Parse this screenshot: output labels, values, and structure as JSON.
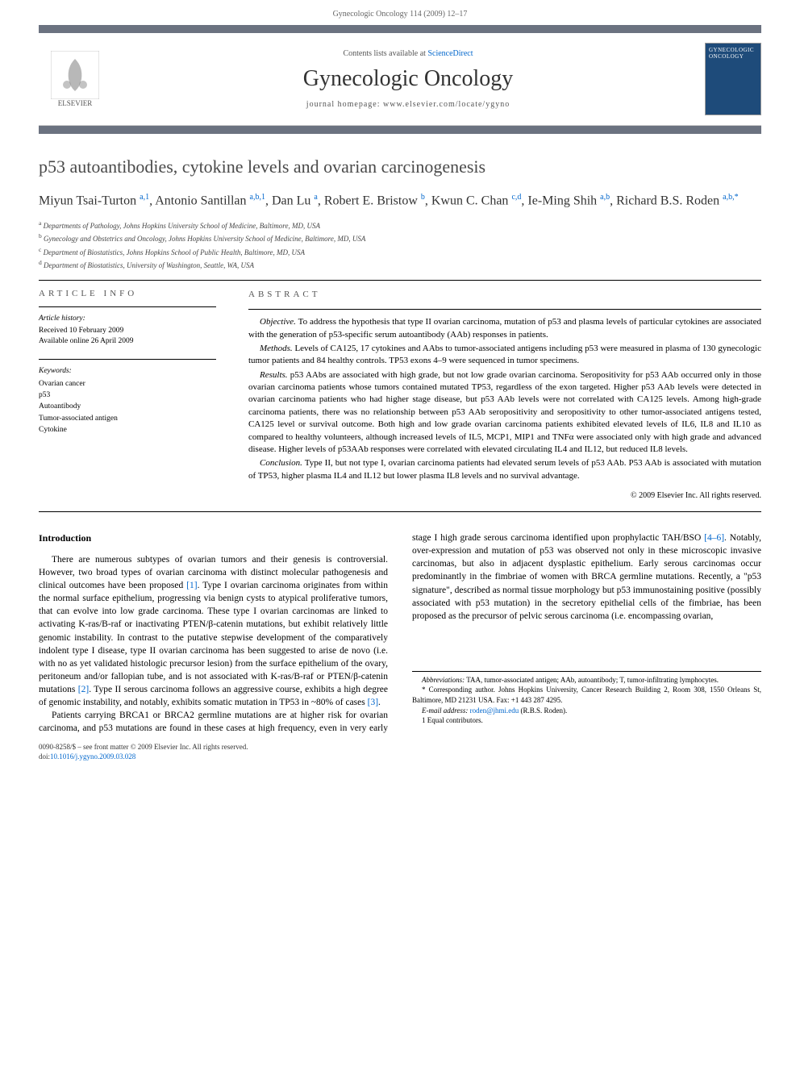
{
  "running_header": "Gynecologic Oncology 114 (2009) 12–17",
  "header": {
    "contents_prefix": "Contents lists available at ",
    "contents_link": "ScienceDirect",
    "journal_name": "Gynecologic Oncology",
    "homepage_label": "journal homepage: ",
    "homepage_url": "www.elsevier.com/locate/ygyno",
    "publisher": "ELSEVIER",
    "cover_title": "GYNECOLOGIC ONCOLOGY"
  },
  "article": {
    "title": "p53 autoantibodies, cytokine levels and ovarian carcinogenesis",
    "authors_html": "Miyun Tsai-Turton <sup>a,1</sup>, Antonio Santillan <sup>a,b,1</sup>, Dan Lu <sup>a</sup>, Robert E. Bristow <sup>b</sup>, Kwun C. Chan <sup>c,d</sup>, Ie-Ming Shih <sup>a,b</sup>, Richard B.S. Roden <sup>a,b,*</sup>",
    "affiliations": [
      "a Departments of Pathology, Johns Hopkins University School of Medicine, Baltimore, MD, USA",
      "b Gynecology and Obstetrics and Oncology, Johns Hopkins University School of Medicine, Baltimore, MD, USA",
      "c Department of Biostatistics, Johns Hopkins School of Public Health, Baltimore, MD, USA",
      "d Department of Biostatistics, University of Washington, Seattle, WA, USA"
    ]
  },
  "info": {
    "heading": "ARTICLE INFO",
    "history_label": "Article history:",
    "received": "Received 10 February 2009",
    "available": "Available online 26 April 2009",
    "keywords_label": "Keywords:",
    "keywords": [
      "Ovarian cancer",
      "p53",
      "Autoantibody",
      "Tumor-associated antigen",
      "Cytokine"
    ]
  },
  "abstract": {
    "heading": "ABSTRACT",
    "objective_label": "Objective.",
    "objective": " To address the hypothesis that type II ovarian carcinoma, mutation of p53 and plasma levels of particular cytokines are associated with the generation of p53-specific serum autoantibody (AAb) responses in patients.",
    "methods_label": "Methods.",
    "methods": " Levels of CA125, 17 cytokines and AAbs to tumor-associated antigens including p53 were measured in plasma of 130 gynecologic tumor patients and 84 healthy controls. TP53 exons 4–9 were sequenced in tumor specimens.",
    "results_label": "Results.",
    "results": " p53 AAbs are associated with high grade, but not low grade ovarian carcinoma. Seropositivity for p53 AAb occurred only in those ovarian carcinoma patients whose tumors contained mutated TP53, regardless of the exon targeted. Higher p53 AAb levels were detected in ovarian carcinoma patients who had higher stage disease, but p53 AAb levels were not correlated with CA125 levels. Among high-grade carcinoma patients, there was no relationship between p53 AAb seropositivity and seropositivity to other tumor-associated antigens tested, CA125 level or survival outcome. Both high and low grade ovarian carcinoma patients exhibited elevated levels of IL6, IL8 and IL10 as compared to healthy volunteers, although increased levels of IL5, MCP1, MIP1 and TNFα were associated only with high grade and advanced disease. Higher levels of p53AAb responses were correlated with elevated circulating IL4 and IL12, but reduced IL8 levels.",
    "conclusion_label": "Conclusion.",
    "conclusion": " Type II, but not type I, ovarian carcinoma patients had elevated serum levels of p53 AAb. P53 AAb is associated with mutation of TP53, higher plasma IL4 and IL12 but lower plasma IL8 levels and no survival advantage.",
    "copyright": "© 2009 Elsevier Inc. All rights reserved."
  },
  "body": {
    "intro_heading": "Introduction",
    "p1a": "There are numerous subtypes of ovarian tumors and their genesis is controversial. However, two broad types of ovarian carcinoma with distinct molecular pathogenesis and clinical outcomes have been proposed ",
    "ref1": "[1]",
    "p1b": ". Type I ovarian carcinoma originates from within the normal surface epithelium, progressing via benign cysts to atypical proliferative tumors, that can evolve into low grade carcinoma. These type I ovarian carcinomas are linked to activating K-ras/B-raf or inactivating PTEN/β-catenin mutations, but exhibit relatively little genomic instability. In contrast to the putative stepwise development of the comparatively indolent type I disease, type II ovarian carcinoma ",
    "p1c": "has been suggested to arise de novo (i.e. with no as yet validated histologic precursor lesion) from the surface epithelium of the ovary, peritoneum and/or fallopian tube, and is not associated with K-ras/B-raf or PTEN/β-catenin mutations ",
    "ref2": "[2]",
    "p1d": ". Type II serous carcinoma follows an aggressive course, exhibits a high degree of genomic instability, and notably, exhibits somatic mutation in TP53 in ~80% of cases ",
    "ref3": "[3]",
    "p1e": ".",
    "p2a": "Patients carrying BRCA1 or BRCA2 germline mutations are at higher risk for ovarian carcinoma, and p53 mutations are found in these cases at high frequency, even in very early stage I high grade serous carcinoma identified upon prophylactic TAH/BSO ",
    "ref46": "[4–6]",
    "p2b": ". Notably, over-expression and mutation of p53 was observed not only in these microscopic invasive carcinomas, but also in adjacent dysplastic epithelium. Early serous carcinomas occur predominantly in the fimbriae of women with BRCA germline mutations. Recently, a \"p53 signature\", described as normal tissue morphology but p53 immunostaining positive (possibly associated with p53 mutation) in the secretory epithelial cells of the fimbriae, has been proposed as the precursor of pelvic serous carcinoma (i.e. encompassing ovarian,"
  },
  "footnotes": {
    "abbrev_label": "Abbreviations:",
    "abbrev": " TAA, tumor-associated antigen; AAb, autoantibody; T, tumor-infiltrating lymphocytes.",
    "corr": "* Corresponding author. Johns Hopkins University, Cancer Research Building 2, Room 308, 1550 Orleans St, Baltimore, MD 21231 USA. Fax: +1 443 287 4295.",
    "email_label": "E-mail address: ",
    "email": "roden@jhmi.edu",
    "email_suffix": " (R.B.S. Roden).",
    "equal": "1 Equal contributors."
  },
  "footer": {
    "line1": "0090-8258/$ – see front matter © 2009 Elsevier Inc. All rights reserved.",
    "doi_prefix": "doi:",
    "doi": "10.1016/j.ygyno.2009.03.028"
  },
  "colors": {
    "bar": "#6b7280",
    "link": "#0066cc",
    "cover_bg": "#1e4b7a"
  }
}
